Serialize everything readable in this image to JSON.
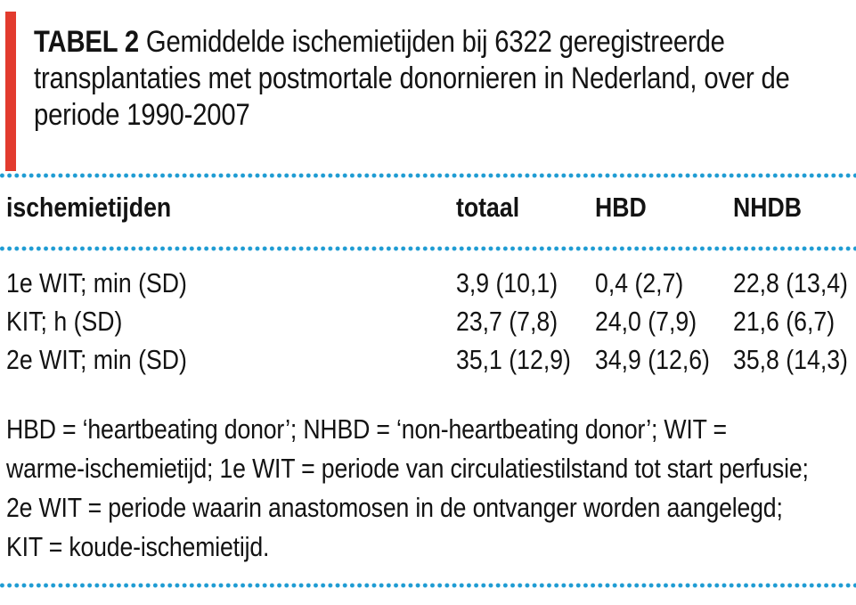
{
  "colors": {
    "accent_red": "#e23b2e",
    "dot_blue": "#1f9cd3",
    "text": "#131313"
  },
  "title": {
    "badge": "TABEL 2",
    "lines": [
      "Gemiddelde ischemietijden bij 6322 geregistreerde",
      "transplantaties met postmortale donornieren in Nederland, over de",
      "periode 1990-2007"
    ]
  },
  "table": {
    "headers": [
      "ischemietijden",
      "totaal",
      "HBD",
      "NHDB"
    ],
    "rows": [
      {
        "label": "1e WIT; min (SD)",
        "values": [
          "3,9 (10,1)",
          "0,4 (2,7)",
          "22,8 (13,4)"
        ]
      },
      {
        "label": "KIT; h (SD)",
        "values": [
          "23,7 (7,8)",
          "24,0 (7,9)",
          "21,6 (6,7)"
        ]
      },
      {
        "label": "2e WIT; min (SD)",
        "values": [
          "35,1 (12,9)",
          "34,9 (12,6)",
          "35,8 (14,3)"
        ]
      }
    ]
  },
  "footnote": {
    "lines": [
      "HBD = ‘heartbeating donor’; NHBD = ‘non-heartbeating donor’; WIT =",
      "warme-ischemietijd; 1e WIT = periode van circulatiestilstand tot start perfusie;",
      "2e WIT = periode waarin anastomosen in de ontvanger worden aangelegd;",
      "KIT = koude-ischemietijd."
    ]
  }
}
